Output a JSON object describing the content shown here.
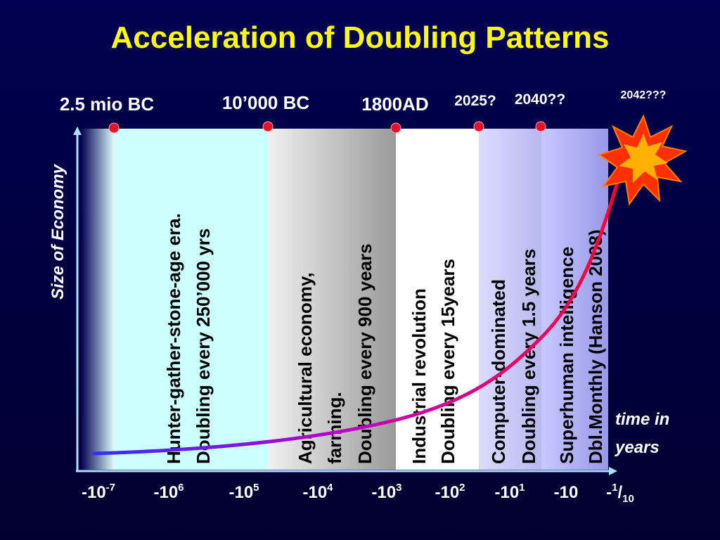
{
  "title": "Acceleration of Doubling Patterns",
  "y_axis_label": "Size of Economy",
  "x_axis_label": [
    "time in",
    "years"
  ],
  "milestones": [
    "2.5 mio BC",
    "10’000 BC",
    "1800AD",
    "2025?",
    "2040??",
    "2042???"
  ],
  "eras": [
    {
      "lines": [
        "Hunter-gather-stone-age era.",
        "Doubling every 250’000 yrs"
      ]
    },
    {
      "lines": [
        "Agricultural economy,",
        "farming.",
        "Doubling every 900 years"
      ]
    },
    {
      "lines": [
        "Industrial revolution",
        "Doubling every 15years"
      ]
    },
    {
      "lines": [
        "Computer-dominated",
        "Doubling every 1.5 years"
      ]
    },
    {
      "lines": [
        "Superhuman intelligence",
        "Dbl.Monthly (Hanson 2008)"
      ]
    }
  ],
  "x_ticks": [
    {
      "base": "-10",
      "sup": "-7"
    },
    {
      "base": "-10",
      "sup": "6"
    },
    {
      "base": "-10",
      "sup": "5"
    },
    {
      "base": "-10",
      "sup": "4"
    },
    {
      "base": "-10",
      "sup": "3"
    },
    {
      "base": "-10",
      "sup": "2"
    },
    {
      "base": "-10",
      "sup": "1"
    },
    {
      "base": "-10"
    },
    {
      "base": "-",
      "sup": "1",
      "mid": "/",
      "sub": "10"
    }
  ]
}
